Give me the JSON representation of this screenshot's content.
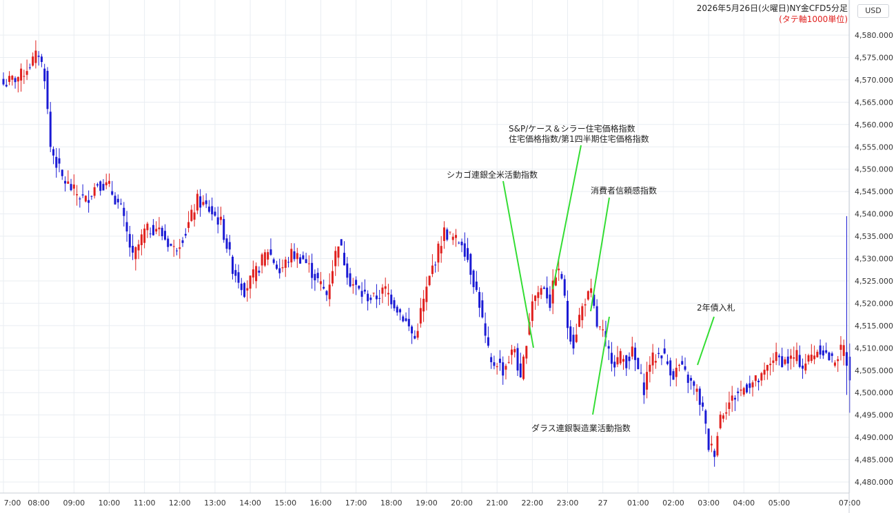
{
  "header": {
    "title": "2026年5月26日(火曜日)NY金CFD5分足",
    "unit_note": "(タテ軸1000単位)",
    "currency": "USD"
  },
  "annotations": [
    {
      "id": "chicago",
      "lines": [
        "シカゴ連銀全米活動指数"
      ]
    },
    {
      "id": "case_shiller",
      "lines": [
        "S&P/ケース＆シラー住宅価格指数",
        "住宅価格指数/第1四半期住宅価格指数"
      ]
    },
    {
      "id": "confidence",
      "lines": [
        "消費者信頼感指数"
      ]
    },
    {
      "id": "dallas",
      "lines": [
        "ダラス連銀製造業活動指数"
      ]
    },
    {
      "id": "auction",
      "lines": [
        "2年債入札"
      ]
    }
  ],
  "colors": {
    "up": "#e0201e",
    "down": "#1a1ad4",
    "grid": "#e9edf2",
    "annotation_line": "#33dd33"
  },
  "chart_data": {
    "type": "candlestick",
    "interval": "5m",
    "y_ticks": [
      4480,
      4485,
      4490,
      4495,
      4500,
      4505,
      4510,
      4515,
      4520,
      4525,
      4530,
      4535,
      4540,
      4545,
      4550,
      4555,
      4560,
      4565,
      4570,
      4575,
      4580
    ],
    "y_tick_labels": [
      "4,480.000",
      "4,485.000",
      "4,490.000",
      "4,495.000",
      "4,500.000",
      "4,505.000",
      "4,510.000",
      "4,515.000",
      "4,520.000",
      "4,525.000",
      "4,530.000",
      "4,535.000",
      "4,540.000",
      "4,545.000",
      "4,550.000",
      "4,555.000",
      "4,560.000",
      "4,565.000",
      "4,570.000",
      "4,575.000",
      "4,580.000"
    ],
    "ylim": [
      4478,
      4582
    ],
    "x_tick_labels": [
      "7:00",
      "08:00",
      "09:00",
      "10:00",
      "11:00",
      "12:00",
      "13:00",
      "14:00",
      "15:00",
      "16:00",
      "17:00",
      "18:00",
      "19:00",
      "20:00",
      "21:00",
      "22:00",
      "23:00",
      "27",
      "01:00",
      "02:00",
      "03:00",
      "04:00",
      "05:00",
      "07:00"
    ],
    "x_tick_bars": [
      0,
      12,
      24,
      36,
      48,
      60,
      72,
      84,
      96,
      108,
      120,
      132,
      144,
      156,
      168,
      180,
      192,
      204,
      216,
      228,
      240,
      252,
      264,
      288
    ],
    "anchor_closes": [
      [
        0,
        4569
      ],
      [
        6,
        4571
      ],
      [
        12,
        4576
      ],
      [
        14,
        4571
      ],
      [
        16,
        4555
      ],
      [
        20,
        4548
      ],
      [
        24,
        4545
      ],
      [
        28,
        4543
      ],
      [
        32,
        4547
      ],
      [
        36,
        4546
      ],
      [
        40,
        4541
      ],
      [
        44,
        4530
      ],
      [
        48,
        4536
      ],
      [
        52,
        4537
      ],
      [
        58,
        4532
      ],
      [
        62,
        4536
      ],
      [
        66,
        4543
      ],
      [
        70,
        4541
      ],
      [
        74,
        4538
      ],
      [
        78,
        4528
      ],
      [
        82,
        4523
      ],
      [
        86,
        4527
      ],
      [
        90,
        4532
      ],
      [
        94,
        4527
      ],
      [
        98,
        4531
      ],
      [
        102,
        4530
      ],
      [
        106,
        4526
      ],
      [
        110,
        4522
      ],
      [
        114,
        4534
      ],
      [
        118,
        4525
      ],
      [
        122,
        4522
      ],
      [
        126,
        4521
      ],
      [
        130,
        4523
      ],
      [
        136,
        4517
      ],
      [
        140,
        4512
      ],
      [
        142,
        4518
      ],
      [
        146,
        4528
      ],
      [
        150,
        4536
      ],
      [
        154,
        4534
      ],
      [
        156,
        4534
      ],
      [
        158,
        4530
      ],
      [
        162,
        4520
      ],
      [
        164,
        4512
      ],
      [
        166,
        4506
      ],
      [
        168,
        4507
      ],
      [
        170,
        4505
      ],
      [
        174,
        4510
      ],
      [
        176,
        4502
      ],
      [
        178,
        4512
      ],
      [
        180,
        4521
      ],
      [
        184,
        4524
      ],
      [
        186,
        4520
      ],
      [
        188,
        4527
      ],
      [
        190,
        4526
      ],
      [
        192,
        4515
      ],
      [
        194,
        4511
      ],
      [
        196,
        4517
      ],
      [
        198,
        4521
      ],
      [
        200,
        4522
      ],
      [
        202,
        4515
      ],
      [
        204,
        4513
      ],
      [
        206,
        4509
      ],
      [
        208,
        4507
      ],
      [
        210,
        4508
      ],
      [
        212,
        4507
      ],
      [
        214,
        4509
      ],
      [
        216,
        4505
      ],
      [
        218,
        4501
      ],
      [
        220,
        4507
      ],
      [
        222,
        4508
      ],
      [
        224,
        4509
      ],
      [
        228,
        4504
      ],
      [
        230,
        4506
      ],
      [
        232,
        4504
      ],
      [
        234,
        4502
      ],
      [
        236,
        4500
      ],
      [
        238,
        4496
      ],
      [
        240,
        4488
      ],
      [
        242,
        4487
      ],
      [
        244,
        4495
      ],
      [
        246,
        4497
      ],
      [
        250,
        4500
      ],
      [
        254,
        4502
      ],
      [
        258,
        4503
      ],
      [
        262,
        4508
      ],
      [
        266,
        4507
      ],
      [
        270,
        4508
      ],
      [
        272,
        4506
      ],
      [
        276,
        4509
      ],
      [
        278,
        4510
      ],
      [
        282,
        4507
      ],
      [
        286,
        4510
      ],
      [
        288,
        4504
      ]
    ]
  }
}
